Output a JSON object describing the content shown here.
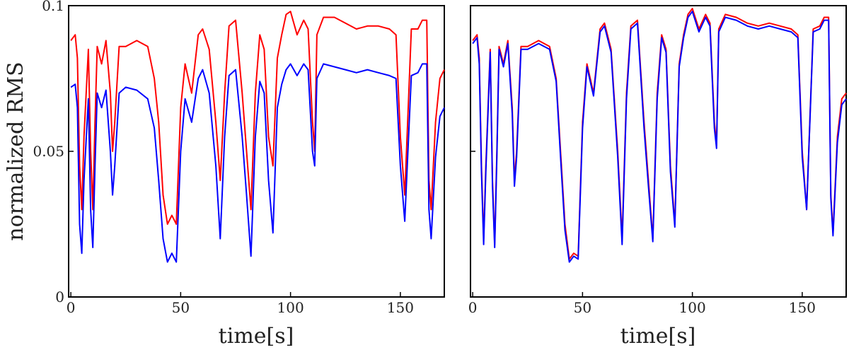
{
  "chart_data": [
    {
      "type": "line",
      "panel": "left",
      "xlabel": "time[s]",
      "ylabel": "normalized RMS",
      "xlim": [
        -1,
        170
      ],
      "ylim": [
        0,
        0.1
      ],
      "xticks": [
        "0",
        "50",
        "100",
        "150"
      ],
      "yticks": [
        "0",
        "0.05",
        "0.1"
      ],
      "grid": false,
      "series": [
        {
          "color": "#ff0000",
          "x": [
            0,
            2,
            3,
            4,
            5,
            6,
            8,
            9,
            10,
            11,
            12,
            14,
            16,
            18,
            19,
            20,
            22,
            25,
            30,
            35,
            38,
            40,
            42,
            44,
            46,
            48,
            50,
            52,
            55,
            58,
            60,
            63,
            66,
            68,
            70,
            72,
            75,
            78,
            80,
            82,
            84,
            86,
            88,
            90,
            92,
            94,
            96,
            98,
            100,
            103,
            106,
            108,
            110,
            111,
            112,
            115,
            120,
            125,
            130,
            135,
            140,
            145,
            148,
            150,
            152,
            155,
            158,
            160,
            162,
            163,
            164,
            166,
            168,
            170
          ],
          "y": [
            0.088,
            0.09,
            0.082,
            0.045,
            0.03,
            0.055,
            0.085,
            0.05,
            0.03,
            0.06,
            0.086,
            0.08,
            0.088,
            0.07,
            0.05,
            0.06,
            0.086,
            0.086,
            0.088,
            0.086,
            0.075,
            0.06,
            0.035,
            0.025,
            0.028,
            0.025,
            0.065,
            0.08,
            0.07,
            0.09,
            0.092,
            0.085,
            0.06,
            0.04,
            0.07,
            0.093,
            0.095,
            0.07,
            0.05,
            0.03,
            0.07,
            0.09,
            0.085,
            0.055,
            0.045,
            0.082,
            0.09,
            0.097,
            0.098,
            0.09,
            0.095,
            0.092,
            0.06,
            0.05,
            0.09,
            0.096,
            0.096,
            0.094,
            0.092,
            0.093,
            0.093,
            0.092,
            0.09,
            0.055,
            0.035,
            0.092,
            0.092,
            0.095,
            0.095,
            0.04,
            0.03,
            0.06,
            0.075,
            0.078
          ]
        },
        {
          "color": "#0000ff",
          "x": [
            0,
            2,
            3,
            4,
            5,
            6,
            8,
            9,
            10,
            11,
            12,
            14,
            16,
            18,
            19,
            20,
            22,
            25,
            30,
            35,
            38,
            40,
            42,
            44,
            46,
            48,
            50,
            52,
            55,
            58,
            60,
            63,
            66,
            68,
            70,
            72,
            75,
            78,
            80,
            82,
            84,
            86,
            88,
            90,
            92,
            94,
            96,
            98,
            100,
            103,
            106,
            108,
            110,
            111,
            112,
            115,
            120,
            125,
            130,
            135,
            140,
            145,
            148,
            150,
            152,
            155,
            158,
            160,
            162,
            163,
            164,
            166,
            168,
            170
          ],
          "y": [
            0.072,
            0.073,
            0.065,
            0.025,
            0.015,
            0.04,
            0.068,
            0.03,
            0.017,
            0.045,
            0.07,
            0.065,
            0.071,
            0.05,
            0.035,
            0.045,
            0.07,
            0.072,
            0.071,
            0.068,
            0.058,
            0.04,
            0.02,
            0.012,
            0.015,
            0.012,
            0.05,
            0.068,
            0.06,
            0.075,
            0.078,
            0.07,
            0.045,
            0.02,
            0.055,
            0.076,
            0.078,
            0.055,
            0.035,
            0.014,
            0.055,
            0.074,
            0.07,
            0.04,
            0.022,
            0.065,
            0.073,
            0.078,
            0.08,
            0.076,
            0.08,
            0.078,
            0.05,
            0.045,
            0.075,
            0.08,
            0.079,
            0.078,
            0.077,
            0.078,
            0.077,
            0.076,
            0.075,
            0.045,
            0.026,
            0.076,
            0.077,
            0.08,
            0.08,
            0.03,
            0.02,
            0.048,
            0.062,
            0.065
          ]
        }
      ]
    },
    {
      "type": "line",
      "panel": "right",
      "xlabel": "time[s]",
      "ylabel": "",
      "xlim": [
        -1,
        170
      ],
      "ylim": [
        0,
        0.1
      ],
      "xticks": [
        "0",
        "50",
        "100",
        "150"
      ],
      "yticks": [
        "",
        "",
        ""
      ],
      "grid": false,
      "series": [
        {
          "color": "#ff0000",
          "x": [
            0,
            2,
            3,
            4,
            5,
            6,
            8,
            9,
            10,
            11,
            12,
            14,
            16,
            18,
            19,
            20,
            22,
            25,
            30,
            35,
            38,
            40,
            42,
            44,
            46,
            48,
            50,
            52,
            55,
            58,
            60,
            63,
            66,
            68,
            70,
            72,
            75,
            78,
            80,
            82,
            84,
            86,
            88,
            90,
            92,
            94,
            96,
            98,
            100,
            103,
            106,
            108,
            110,
            111,
            112,
            115,
            120,
            125,
            130,
            135,
            140,
            145,
            148,
            150,
            152,
            155,
            158,
            160,
            162,
            163,
            164,
            166,
            168,
            170
          ],
          "y": [
            0.088,
            0.09,
            0.082,
            0.045,
            0.02,
            0.045,
            0.085,
            0.04,
            0.018,
            0.05,
            0.086,
            0.08,
            0.088,
            0.065,
            0.04,
            0.05,
            0.086,
            0.086,
            0.088,
            0.086,
            0.075,
            0.05,
            0.025,
            0.013,
            0.015,
            0.014,
            0.06,
            0.08,
            0.07,
            0.092,
            0.094,
            0.085,
            0.05,
            0.02,
            0.07,
            0.093,
            0.095,
            0.06,
            0.04,
            0.02,
            0.07,
            0.09,
            0.085,
            0.045,
            0.025,
            0.08,
            0.09,
            0.097,
            0.099,
            0.092,
            0.097,
            0.094,
            0.06,
            0.052,
            0.092,
            0.097,
            0.096,
            0.094,
            0.093,
            0.094,
            0.093,
            0.092,
            0.09,
            0.05,
            0.03,
            0.092,
            0.093,
            0.096,
            0.096,
            0.035,
            0.022,
            0.055,
            0.068,
            0.07
          ]
        },
        {
          "color": "#0000ff",
          "x": [
            0,
            2,
            3,
            4,
            5,
            6,
            8,
            9,
            10,
            11,
            12,
            14,
            16,
            18,
            19,
            20,
            22,
            25,
            30,
            35,
            38,
            40,
            42,
            44,
            46,
            48,
            50,
            52,
            55,
            58,
            60,
            63,
            66,
            68,
            70,
            72,
            75,
            78,
            80,
            82,
            84,
            86,
            88,
            90,
            92,
            94,
            96,
            98,
            100,
            103,
            106,
            108,
            110,
            111,
            112,
            115,
            120,
            125,
            130,
            135,
            140,
            145,
            148,
            150,
            152,
            155,
            158,
            160,
            162,
            163,
            164,
            166,
            168,
            170
          ],
          "y": [
            0.087,
            0.089,
            0.08,
            0.043,
            0.018,
            0.043,
            0.084,
            0.038,
            0.017,
            0.048,
            0.085,
            0.079,
            0.087,
            0.063,
            0.038,
            0.048,
            0.085,
            0.085,
            0.087,
            0.085,
            0.074,
            0.048,
            0.023,
            0.012,
            0.014,
            0.013,
            0.058,
            0.079,
            0.069,
            0.091,
            0.093,
            0.084,
            0.048,
            0.018,
            0.068,
            0.092,
            0.094,
            0.058,
            0.038,
            0.019,
            0.068,
            0.089,
            0.084,
            0.043,
            0.024,
            0.079,
            0.089,
            0.096,
            0.098,
            0.091,
            0.096,
            0.093,
            0.058,
            0.051,
            0.091,
            0.096,
            0.095,
            0.093,
            0.092,
            0.093,
            0.092,
            0.091,
            0.089,
            0.048,
            0.03,
            0.091,
            0.092,
            0.095,
            0.095,
            0.034,
            0.021,
            0.053,
            0.066,
            0.068
          ]
        }
      ]
    }
  ]
}
